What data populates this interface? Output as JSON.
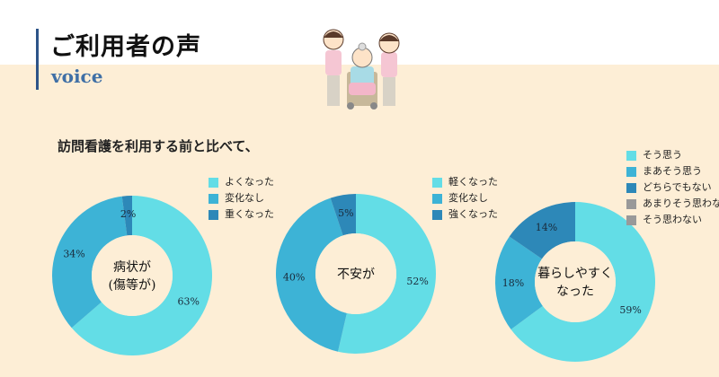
{
  "header": {
    "title": "ご利用者の声",
    "subtitle": "voice"
  },
  "lead_text": "訪問看護を利用する前と比べて、",
  "colors": {
    "light": "#63dde6",
    "mid": "#3db3d6",
    "dark": "#2d88b8",
    "grey": "#999999",
    "accent": "#2d5488"
  },
  "chart_data": [
    {
      "type": "pie",
      "donut": true,
      "center_label": [
        "病状が",
        "(傷等が)"
      ],
      "categories": [
        "よくなった",
        "変化なし",
        "重くなった"
      ],
      "values": [
        63,
        34,
        2
      ],
      "labels": [
        "63%",
        "34%",
        "2%"
      ],
      "colors": [
        "#63dde6",
        "#3db3d6",
        "#2d88b8"
      ],
      "legend": "top-right"
    },
    {
      "type": "pie",
      "donut": true,
      "center_label": [
        "不安が"
      ],
      "categories": [
        "軽くなった",
        "変化なし",
        "強くなった"
      ],
      "values": [
        52,
        40,
        5
      ],
      "labels": [
        "52%",
        "40%",
        "5%"
      ],
      "colors": [
        "#63dde6",
        "#3db3d6",
        "#2d88b8"
      ],
      "legend": "top-right"
    },
    {
      "type": "pie",
      "donut": true,
      "center_label": [
        "暮らしやすく",
        "なった"
      ],
      "categories": [
        "そう思う",
        "まあそう思う",
        "どちらでもない",
        "あまりそう思わない",
        "そう思わない"
      ],
      "values": [
        59,
        18,
        14,
        0,
        0
      ],
      "labels": [
        "59%",
        "18%",
        "14%",
        "",
        ""
      ],
      "colors": [
        "#63dde6",
        "#3db3d6",
        "#2d88b8",
        "#999999",
        "#999999"
      ],
      "legend": "top-right"
    }
  ]
}
